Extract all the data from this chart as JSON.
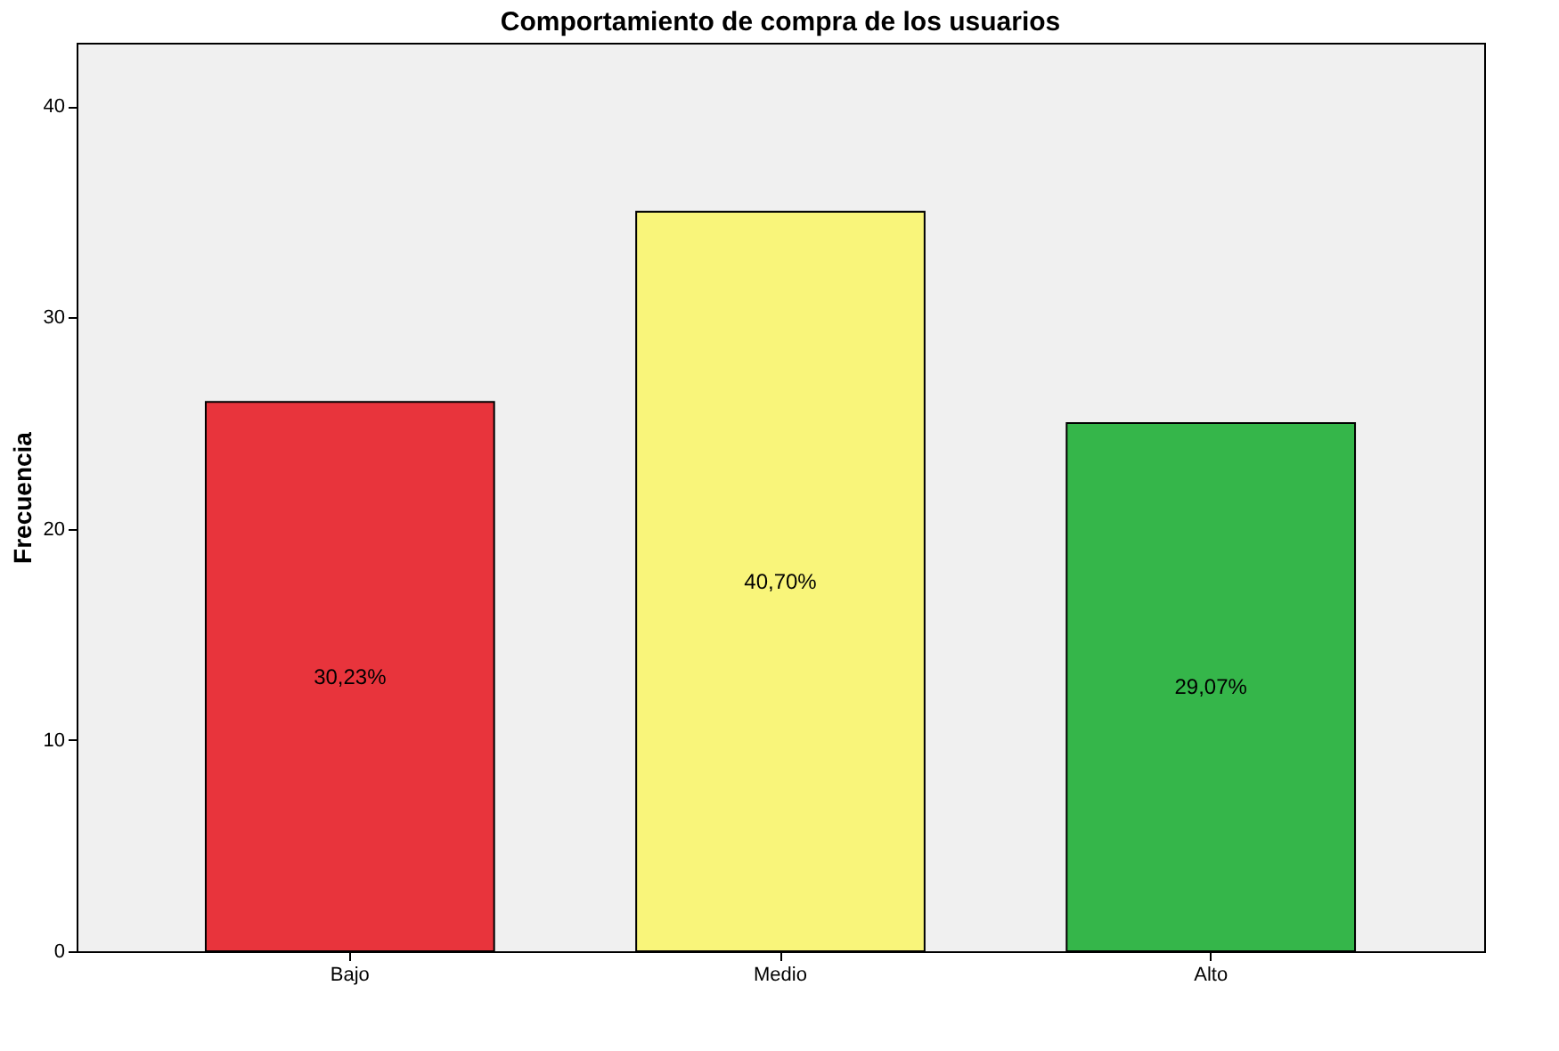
{
  "chart_data": {
    "type": "bar",
    "title": "Comportamiento de compra de los usuarios",
    "ylabel": "Frecuencia",
    "categories": [
      "Bajo",
      "Medio",
      "Alto"
    ],
    "values": [
      26,
      35,
      25
    ],
    "colors": [
      "#e8343c",
      "#f9f57a",
      "#35b64a"
    ],
    "annotations": [
      "30,23%",
      "40,70%",
      "29,07%"
    ],
    "ylim": [
      0,
      43
    ],
    "yticks": [
      0,
      10,
      20,
      30,
      40
    ],
    "grid": false
  }
}
